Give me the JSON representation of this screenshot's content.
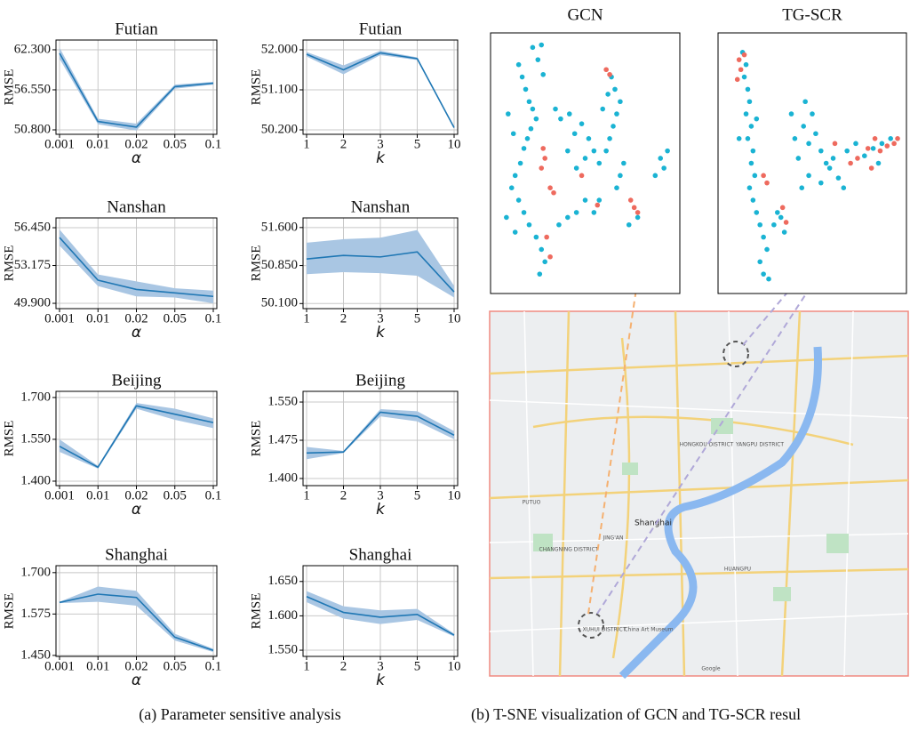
{
  "chart_data": [
    {
      "type": "line",
      "title": "Futian",
      "x_label": "α",
      "y_label": "RMSE",
      "categories": [
        "0.001",
        "0.01",
        "0.02",
        "0.05",
        "0.1"
      ],
      "series": [
        {
          "color": "#1f77b4",
          "band_color": "#a9c6e3",
          "values": [
            61.8,
            52.0,
            51.2,
            57.0,
            57.5
          ],
          "lower": [
            61.0,
            51.6,
            50.7,
            56.7,
            57.3
          ],
          "upper": [
            62.6,
            52.4,
            51.7,
            57.3,
            57.7
          ]
        }
      ],
      "ylim": [
        50.16,
        63.7
      ],
      "yticks": [
        {
          "value": 50.8,
          "label": "50.800"
        },
        {
          "value": 56.55,
          "label": "56.550"
        },
        {
          "value": 62.3,
          "label": "62.300"
        }
      ],
      "grid": true
    },
    {
      "type": "line",
      "title": "Futian",
      "x_label": "k",
      "y_label": "RMSE",
      "categories": [
        "1",
        "2",
        "3",
        "5",
        "10"
      ],
      "series": [
        {
          "color": "#1f77b4",
          "band_color": "#a9c6e3",
          "values": [
            51.9,
            51.55,
            51.93,
            51.8,
            50.25
          ],
          "lower": [
            51.85,
            51.45,
            51.88,
            51.77,
            50.23
          ],
          "upper": [
            51.95,
            51.65,
            51.98,
            51.83,
            50.27
          ]
        }
      ],
      "ylim": [
        50.1,
        52.22
      ],
      "yticks": [
        {
          "value": 50.2,
          "label": "50.200"
        },
        {
          "value": 51.1,
          "label": "51.100"
        },
        {
          "value": 52.0,
          "label": "52.000"
        }
      ],
      "grid": true
    },
    {
      "type": "line",
      "title": "Nanshan",
      "x_label": "α",
      "y_label": "RMSE",
      "categories": [
        "0.001",
        "0.01",
        "0.02",
        "0.05",
        "0.1"
      ],
      "series": [
        {
          "color": "#1f77b4",
          "band_color": "#a9c6e3",
          "values": [
            55.6,
            51.9,
            51.1,
            50.8,
            50.5
          ],
          "lower": [
            54.9,
            51.4,
            50.5,
            50.4,
            49.9
          ],
          "upper": [
            56.3,
            52.4,
            51.8,
            51.2,
            51.0
          ]
        }
      ],
      "ylim": [
        49.44,
        57.3
      ],
      "yticks": [
        {
          "value": 49.9,
          "label": "49.900"
        },
        {
          "value": 53.175,
          "label": "53.175"
        },
        {
          "value": 56.45,
          "label": "56.450"
        }
      ],
      "grid": true
    },
    {
      "type": "line",
      "title": "Nanshan",
      "x_label": "k",
      "y_label": "RMSE",
      "categories": [
        "1",
        "2",
        "3",
        "5",
        "10"
      ],
      "series": [
        {
          "color": "#1f77b4",
          "band_color": "#a9c6e3",
          "values": [
            50.98,
            51.05,
            51.02,
            51.12,
            50.33
          ],
          "lower": [
            50.68,
            50.72,
            50.7,
            50.65,
            50.22
          ],
          "upper": [
            51.3,
            51.37,
            51.4,
            51.55,
            50.45
          ]
        }
      ],
      "ylim": [
        50.0,
        51.79
      ],
      "yticks": [
        {
          "value": 50.1,
          "label": "50.100"
        },
        {
          "value": 50.85,
          "label": "50.850"
        },
        {
          "value": 51.6,
          "label": "51.600"
        }
      ],
      "grid": true
    },
    {
      "type": "line",
      "title": "Beijing",
      "x_label": "α",
      "y_label": "RMSE",
      "categories": [
        "0.001",
        "0.01",
        "0.02",
        "0.05",
        "0.1"
      ],
      "series": [
        {
          "color": "#1f77b4",
          "band_color": "#a9c6e3",
          "values": [
            1.525,
            1.45,
            1.67,
            1.64,
            1.61
          ],
          "lower": [
            1.505,
            1.445,
            1.66,
            1.62,
            1.59
          ],
          "upper": [
            1.55,
            1.455,
            1.68,
            1.66,
            1.625
          ]
        }
      ],
      "ylim": [
        1.384,
        1.722
      ],
      "yticks": [
        {
          "value": 1.4,
          "label": "1.400"
        },
        {
          "value": 1.55,
          "label": "1.550"
        },
        {
          "value": 1.7,
          "label": "1.700"
        }
      ],
      "grid": true
    },
    {
      "type": "line",
      "title": "Beijing",
      "x_label": "k",
      "y_label": "RMSE",
      "categories": [
        "1",
        "2",
        "3",
        "5",
        "10"
      ],
      "series": [
        {
          "color": "#1f77b4",
          "band_color": "#a9c6e3",
          "values": [
            1.45,
            1.452,
            1.53,
            1.522,
            1.485
          ],
          "lower": [
            1.438,
            1.45,
            1.522,
            1.512,
            1.477
          ],
          "upper": [
            1.462,
            1.454,
            1.536,
            1.532,
            1.493
          ]
        }
      ],
      "ylim": [
        1.386,
        1.571
      ],
      "yticks": [
        {
          "value": 1.4,
          "label": "1.400"
        },
        {
          "value": 1.475,
          "label": "1.475"
        },
        {
          "value": 1.55,
          "label": "1.550"
        }
      ],
      "grid": true
    },
    {
      "type": "line",
      "title": "Shanghai",
      "x_label": "α",
      "y_label": "RMSE",
      "categories": [
        "0.001",
        "0.01",
        "0.02",
        "0.05",
        "0.1"
      ],
      "series": [
        {
          "color": "#1f77b4",
          "band_color": "#a9c6e3",
          "values": [
            1.61,
            1.635,
            1.625,
            1.505,
            1.465
          ],
          "lower": [
            1.608,
            1.612,
            1.6,
            1.495,
            1.46
          ],
          "upper": [
            1.612,
            1.658,
            1.645,
            1.515,
            1.47
          ]
        }
      ],
      "ylim": [
        1.447,
        1.721
      ],
      "yticks": [
        {
          "value": 1.45,
          "label": "1.450"
        },
        {
          "value": 1.575,
          "label": "1.575"
        },
        {
          "value": 1.7,
          "label": "1.700"
        }
      ],
      "grid": true
    },
    {
      "type": "line",
      "title": "Shanghai",
      "x_label": "k",
      "y_label": "RMSE",
      "categories": [
        "1",
        "2",
        "3",
        "5",
        "10"
      ],
      "series": [
        {
          "color": "#1f77b4",
          "band_color": "#a9c6e3",
          "values": [
            1.628,
            1.605,
            1.598,
            1.602,
            1.572
          ],
          "lower": [
            1.62,
            1.596,
            1.588,
            1.594,
            1.57
          ],
          "upper": [
            1.636,
            1.614,
            1.608,
            1.61,
            1.574
          ]
        }
      ],
      "ylim": [
        1.541,
        1.673
      ],
      "yticks": [
        {
          "value": 1.55,
          "label": "1.550"
        },
        {
          "value": 1.6,
          "label": "1.600"
        },
        {
          "value": 1.65,
          "label": "1.650"
        }
      ],
      "grid": true
    },
    {
      "type": "scatter",
      "title": "GCN",
      "xlim": [
        0,
        100
      ],
      "ylim": [
        0,
        100
      ],
      "series": [
        {
          "color": "#1ab3d3",
          "x": [
            12,
            14,
            16,
            18,
            20,
            22,
            19,
            17,
            15,
            13,
            10,
            8,
            12,
            15,
            18,
            22,
            25,
            27,
            24,
            26,
            23,
            20,
            9,
            6,
            5,
            10,
            40,
            44,
            48,
            52,
            55,
            58,
            50,
            45,
            36,
            33,
            41,
            62,
            64,
            66,
            68,
            70,
            67,
            65,
            63,
            60,
            72,
            70,
            68,
            55,
            58,
            50,
            45,
            40,
            35,
            93,
            95,
            97,
            90,
            75,
            80,
            25
          ],
          "values": [
            90,
            85,
            80,
            75,
            72,
            68,
            64,
            60,
            56,
            50,
            45,
            40,
            35,
            30,
            25,
            20,
            15,
            10,
            5,
            86,
            92,
            97,
            62,
            70,
            28,
            22,
            55,
            62,
            66,
            60,
            55,
            50,
            52,
            48,
            68,
            72,
            70,
            55,
            60,
            65,
            70,
            75,
            80,
            85,
            78,
            72,
            50,
            45,
            40,
            30,
            35,
            35,
            30,
            28,
            25,
            52,
            48,
            55,
            45,
            25,
            28,
            98
          ]
        },
        {
          "color": "#ee6a5e",
          "x": [
            26,
            27,
            25,
            30,
            32,
            28,
            30,
            48,
            62,
            64,
            78,
            80,
            76,
            57
          ],
          "values": [
            56,
            52,
            48,
            40,
            38,
            20,
            12,
            45,
            88,
            86,
            32,
            30,
            35,
            33
          ]
        }
      ]
    },
    {
      "type": "scatter",
      "title": "TG-SCR",
      "xlim": [
        0,
        100
      ],
      "ylim": [
        0,
        100
      ],
      "series": [
        {
          "color": "#1ab3d3",
          "x": [
            10,
            12,
            11,
            13,
            14,
            12,
            15,
            13,
            16,
            15,
            17,
            14,
            16,
            18,
            20,
            22,
            24,
            20,
            22,
            25,
            18,
            8,
            40,
            45,
            50,
            48,
            55,
            52,
            58,
            42,
            38,
            46,
            60,
            62,
            65,
            68,
            55,
            48,
            70,
            75,
            80,
            85,
            90,
            95,
            88,
            30,
            32,
            28,
            34,
            44
          ],
          "values": [
            95,
            90,
            85,
            80,
            75,
            70,
            65,
            60,
            55,
            50,
            45,
            40,
            35,
            30,
            25,
            20,
            15,
            10,
            5,
            3,
            68,
            60,
            60,
            65,
            70,
            58,
            55,
            62,
            50,
            52,
            70,
            75,
            48,
            52,
            44,
            40,
            42,
            45,
            55,
            58,
            53,
            56,
            58,
            60,
            50,
            30,
            28,
            25,
            22,
            40
          ]
        },
        {
          "color": "#ee6a5e",
          "x": [
            8,
            9,
            11,
            7,
            22,
            24,
            33,
            35,
            72,
            76,
            82,
            86,
            89,
            93,
            97,
            99,
            84,
            63
          ],
          "values": [
            92,
            88,
            94,
            84,
            45,
            42,
            32,
            26,
            50,
            52,
            56,
            60,
            55,
            57,
            58,
            60,
            48,
            58
          ]
        }
      ]
    }
  ],
  "map": {
    "labels": [
      "Shanghai",
      "HONGKOU DISTRICT",
      "YANGPU DISTRICT",
      "PUTUO",
      "JING'AN",
      "CHANGNING DISTRICT",
      "XUHUI DISTRICT",
      "HUANGPU",
      "China Art Museum",
      "Google"
    ]
  },
  "captions": [
    "(a) Parameter sensitive analysis",
    "(b) T-SNE visualization of GCN and TG-SCR resul"
  ]
}
